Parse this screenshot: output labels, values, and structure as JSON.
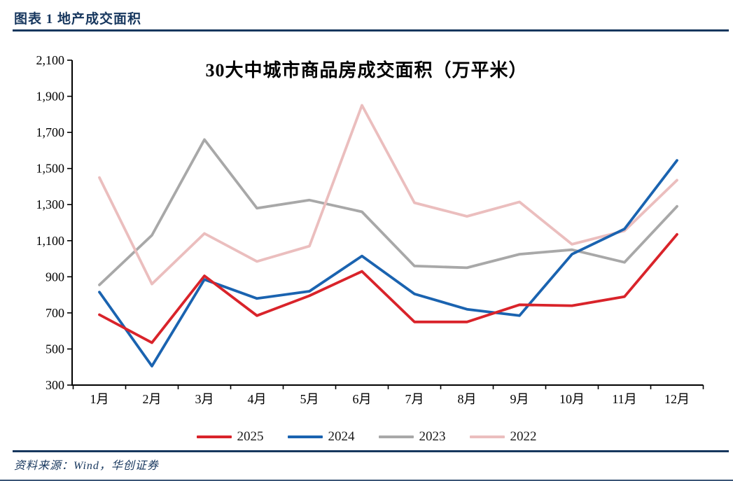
{
  "page": {
    "header_text": "图表 1  地产成交面积",
    "source_text": "资料来源：Wind，华创证券",
    "accent_color": "#17375E"
  },
  "chart_data": {
    "type": "line",
    "title": "30大中城市商品房成交面积（万平米）",
    "xlabel": "",
    "ylabel": "",
    "categories": [
      "1月",
      "2月",
      "3月",
      "4月",
      "5月",
      "6月",
      "7月",
      "8月",
      "9月",
      "10月",
      "11月",
      "12月"
    ],
    "ylim": [
      300,
      2100
    ],
    "y_ticks": [
      300,
      500,
      700,
      900,
      1100,
      1300,
      1500,
      1700,
      1900,
      2100
    ],
    "y_tick_labels": [
      "300",
      "500",
      "700",
      "900",
      "1,100",
      "1,300",
      "1,500",
      "1,700",
      "1,900",
      "2,100"
    ],
    "grid": false,
    "legend_position": "bottom",
    "axis_color": "#000000",
    "series": [
      {
        "name": "2025",
        "color": "#D9232A",
        "values": [
          690,
          535,
          905,
          685,
          795,
          930,
          650,
          650,
          745,
          740,
          790,
          1135
        ]
      },
      {
        "name": "2024",
        "color": "#1A63B0",
        "values": [
          815,
          405,
          885,
          780,
          820,
          1015,
          805,
          720,
          685,
          1025,
          1165,
          1545
        ]
      },
      {
        "name": "2023",
        "color": "#A8A8A8",
        "values": [
          855,
          1130,
          1660,
          1280,
          1325,
          1260,
          960,
          950,
          1025,
          1050,
          980,
          1290
        ]
      },
      {
        "name": "2022",
        "color": "#EBBEBE",
        "values": [
          1450,
          860,
          1140,
          985,
          1070,
          1850,
          1310,
          1235,
          1315,
          1080,
          1155,
          1435
        ]
      }
    ],
    "draw_order": [
      2,
      3,
      1,
      0
    ]
  }
}
